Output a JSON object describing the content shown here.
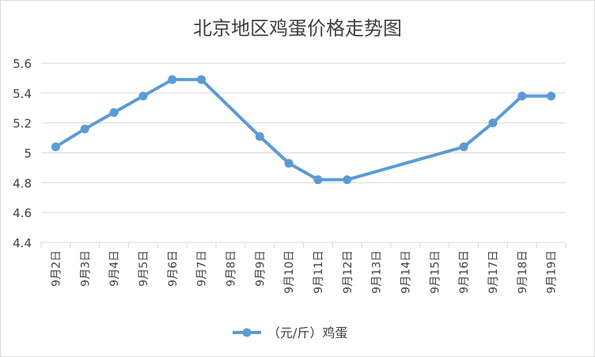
{
  "chart_data": {
    "type": "line",
    "title": "北京地区鸡蛋价格走势图",
    "categories": [
      "9月2日",
      "9月3日",
      "9月4日",
      "9月5日",
      "9月6日",
      "9月7日",
      "9月8日",
      "9月9日",
      "9月10日",
      "9月11日",
      "9月12日",
      "9月13日",
      "9月14日",
      "9月15日",
      "9月16日",
      "9月17日",
      "9月18日",
      "9月19日"
    ],
    "series": [
      {
        "name": "（元/斤）鸡蛋",
        "values": [
          5.04,
          5.16,
          5.27,
          5.38,
          5.49,
          5.49,
          null,
          5.11,
          4.93,
          4.82,
          4.82,
          null,
          null,
          null,
          5.04,
          5.2,
          5.38,
          5.38
        ]
      }
    ],
    "ylim": [
      4.4,
      5.6
    ],
    "yticks": [
      "4.4",
      "4.6",
      "4.8",
      "5",
      "5.2",
      "5.4",
      "5.6"
    ],
    "grid": true,
    "legend": "bottom",
    "colors": {
      "line": "#5b9bd5",
      "grid": "#d9d9d9",
      "text": "#404040"
    }
  }
}
